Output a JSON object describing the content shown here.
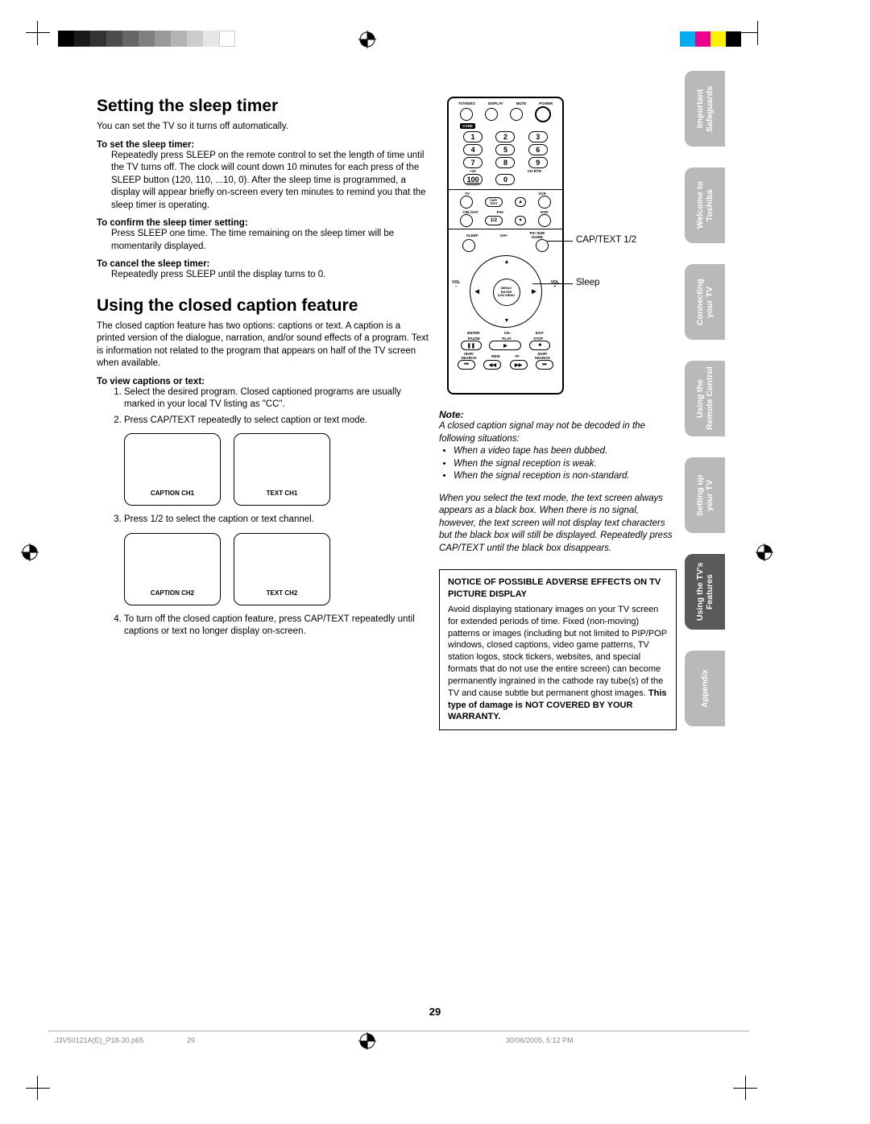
{
  "marks": {
    "grayscale": [
      "#000000",
      "#1a1a1a",
      "#333333",
      "#4d4d4d",
      "#666666",
      "#808080",
      "#999999",
      "#b3b3b3",
      "#cccccc",
      "#e6e6e6",
      "#ffffff"
    ],
    "colorbar": [
      "#00aeef",
      "#ec008c",
      "#fff200",
      "#000000"
    ]
  },
  "section1": {
    "heading": "Setting the sleep timer",
    "intro": "You can set the TV so it turns off automatically.",
    "sub1_title": "To set the sleep timer:",
    "sub1_body": "Repeatedly press SLEEP on the remote control to set the length of time until the TV turns off. The clock will count down 10 minutes for each press of the SLEEP button (120, 110, ...10, 0). After the sleep time is programmed, a display will appear briefly on-screen every ten minutes to remind you that the sleep timer is operating.",
    "sub2_title": "To confirm the sleep timer setting:",
    "sub2_body": "Press SLEEP one time. The time remaining on the sleep timer will be momentarily displayed.",
    "sub3_title": "To cancel the sleep timer:",
    "sub3_body": "Repeatedly press SLEEP until the display turns to 0."
  },
  "section2": {
    "heading": "Using the closed caption feature",
    "intro": "The closed caption feature has two options: captions or text. A caption is a printed version of the dialogue, narration, and/or sound effects of a program. Text is information not related to the program that appears on half of the TV screen when available.",
    "steps_title": "To view captions or text:",
    "step1": "Select the desired program. Closed captioned programs are usually marked in your local TV listing as \"CC\".",
    "step2": "Press CAP/TEXT repeatedly to select caption or text mode.",
    "box1a": "CAPTION CH1",
    "box1b": "TEXT CH1",
    "step3": "Press 1/2 to select the caption or text channel.",
    "box2a": "CAPTION CH2",
    "box2b": "TEXT CH2",
    "step4": "To turn off the closed caption feature, press CAP/TEXT repeatedly until captions or text no longer display on-screen."
  },
  "remote": {
    "top_labels": [
      "TV/VIDEO",
      "DISPLAY",
      "MUTE",
      "POWER"
    ],
    "code": "CODE",
    "numbers": [
      "1",
      "2",
      "3",
      "4",
      "5",
      "6",
      "7",
      "8",
      "9",
      "100",
      "0"
    ],
    "plus10": "+10",
    "chrtn": "CH RTN",
    "tv": "TV",
    "vcr": "VCR",
    "captext": "CAP/\nTEXT",
    "cblsat": "CBL/SAT",
    "fav": "FAV",
    "dvd": "DVD",
    "half": "1/2",
    "sleep": "SLEEP",
    "chplus": "CH+",
    "picsize": "PIC SIZE\nGUIDE",
    "menu": "MENU/\nENTER\nDVD MENU",
    "voln": "VOL\n–",
    "volp": "VOL\n+",
    "enter": "ENTER",
    "chminus": "CH–",
    "exit": "EXIT",
    "pause": "PAUSE",
    "play": "PLAY",
    "stop": "STOP",
    "skip1": "SKIP/\nSEARCH",
    "rew": "REW",
    "ff": "FF",
    "skip2": "SKIP/\nSEARCH",
    "callout1": "CAP/TEXT 1/2",
    "callout2": "Sleep"
  },
  "note": {
    "head": "Note:",
    "p1": "A closed caption signal may not be decoded in the following situations:",
    "li1": "When a video tape has been dubbed.",
    "li2": "When the signal reception is weak.",
    "li3": "When the signal reception is non-standard.",
    "p2": "When you select the text mode, the text screen always appears as a black box. When there is no signal, however, the text screen will not display text characters but the black box will still be displayed. Repeatedly press CAP/TEXT until the black box disappears."
  },
  "notice": {
    "title": "NOTICE OF POSSIBLE ADVERSE EFFECTS ON TV PICTURE DISPLAY",
    "body_a": "Avoid displaying stationary images on your TV screen for extended periods of time. Fixed (non-moving) patterns or images (including but not limited to PIP/POP windows, closed captions, video game patterns, TV station logos, stock tickers, websites, and special formats that do not use the entire screen) can become permanently ingrained in the cathode ray tube(s) of the TV and cause subtle but permanent ghost images. ",
    "body_b": "This type of damage is NOT COVERED BY YOUR WARRANTY."
  },
  "tabs": [
    {
      "label": "Important\nSafeguards",
      "active": false
    },
    {
      "label": "Welcome to\nToshiba",
      "active": false
    },
    {
      "label": "Connecting\nyour TV",
      "active": false
    },
    {
      "label": "Using the\nRemote Control",
      "active": false
    },
    {
      "label": "Setting up\nyour TV",
      "active": false
    },
    {
      "label": "Using the TV's\nFeatures",
      "active": true
    },
    {
      "label": "Appendix",
      "active": false
    }
  ],
  "page_number": "29",
  "footer": {
    "file": "J3V50121A(E)_P18-30.p65",
    "page": "29",
    "timestamp": "30/06/2005, 5:12 PM"
  }
}
